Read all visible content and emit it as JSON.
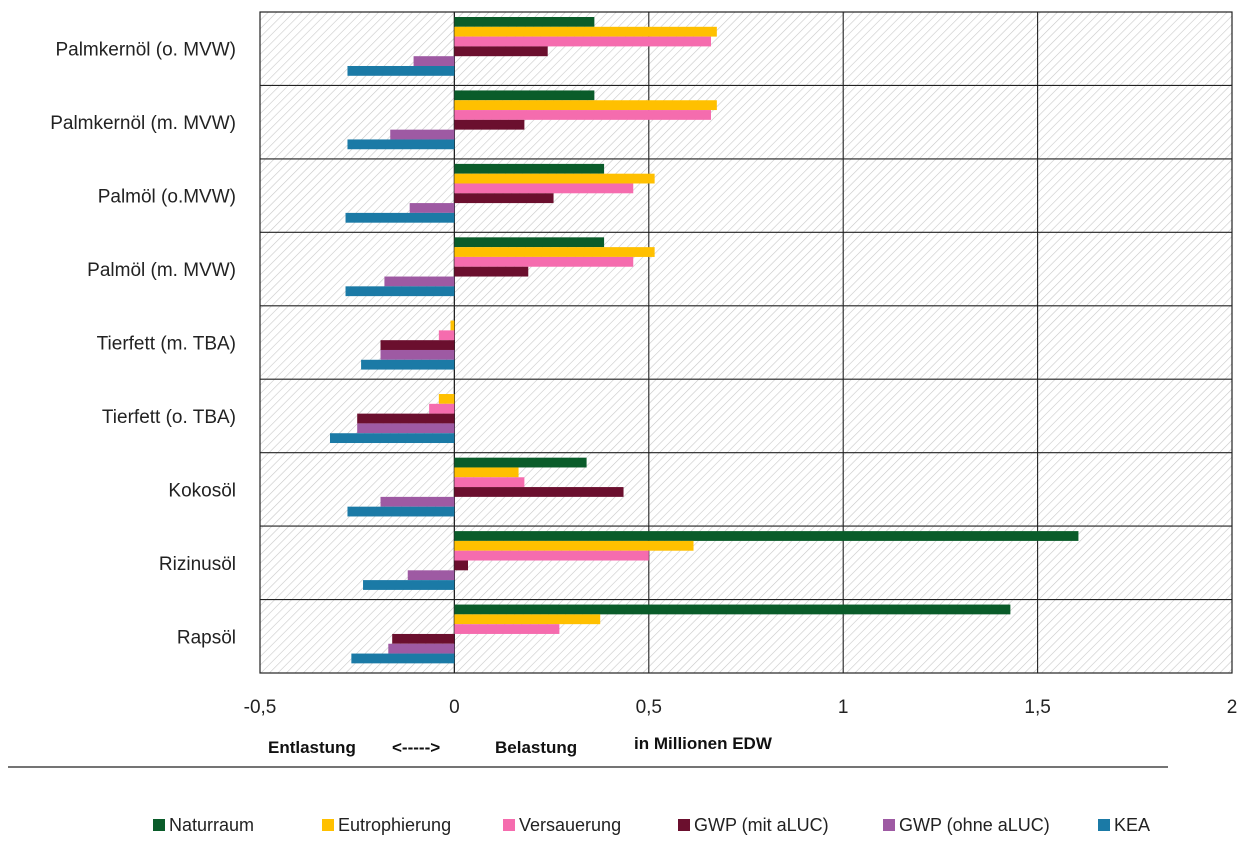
{
  "chart_data": {
    "type": "bar",
    "orientation": "horizontal",
    "categories": [
      "Palmkernöl (o. MVW)",
      "Palmkernöl (m. MVW)",
      "Palmöl (o.MVW)",
      "Palmöl (m. MVW)",
      "Tierfett (m. TBA)",
      "Tierfett (o. TBA)",
      "Kokosöl",
      "Rizinusöl",
      "Rapsöl"
    ],
    "series": [
      {
        "name": "Naturraum",
        "color": "#0a5c2a",
        "values": [
          0.36,
          0.36,
          0.385,
          0.385,
          0,
          0,
          0.34,
          1.605,
          1.43
        ]
      },
      {
        "name": "Eutrophierung",
        "color": "#ffc000",
        "values": [
          0.675,
          0.675,
          0.515,
          0.515,
          -0.01,
          -0.04,
          0.165,
          0.615,
          0.375
        ]
      },
      {
        "name": "Versauerung",
        "color": "#f56cae",
        "values": [
          0.66,
          0.66,
          0.46,
          0.46,
          -0.04,
          -0.065,
          0.18,
          0.5,
          0.27
        ]
      },
      {
        "name": "GWP (mit aLUC)",
        "color": "#6b0f2e",
        "values": [
          0.24,
          0.18,
          0.255,
          0.19,
          -0.19,
          -0.25,
          0.435,
          0.035,
          -0.16
        ]
      },
      {
        "name": "GWP (ohne aLUC)",
        "color": "#9e5aa3",
        "values": [
          -0.105,
          -0.165,
          -0.115,
          -0.18,
          -0.19,
          -0.25,
          -0.19,
          -0.12,
          -0.17
        ]
      },
      {
        "name": "KEA",
        "color": "#1b7aa6",
        "values": [
          -0.275,
          -0.275,
          -0.28,
          -0.28,
          -0.24,
          -0.32,
          -0.275,
          -0.235,
          -0.265
        ]
      }
    ],
    "xlim": [
      -0.5,
      2
    ],
    "xticks": [
      -0.5,
      0,
      0.5,
      1,
      1.5,
      2
    ],
    "xtick_labels": [
      "-0,5",
      "0",
      "0,5",
      "1",
      "1,5",
      "2"
    ],
    "annotation_left": "Entlastung",
    "annotation_arrow": "<----->",
    "annotation_right": "Belastung",
    "xlabel": "in Millionen EDW",
    "grid": true,
    "legend_position": "bottom"
  }
}
